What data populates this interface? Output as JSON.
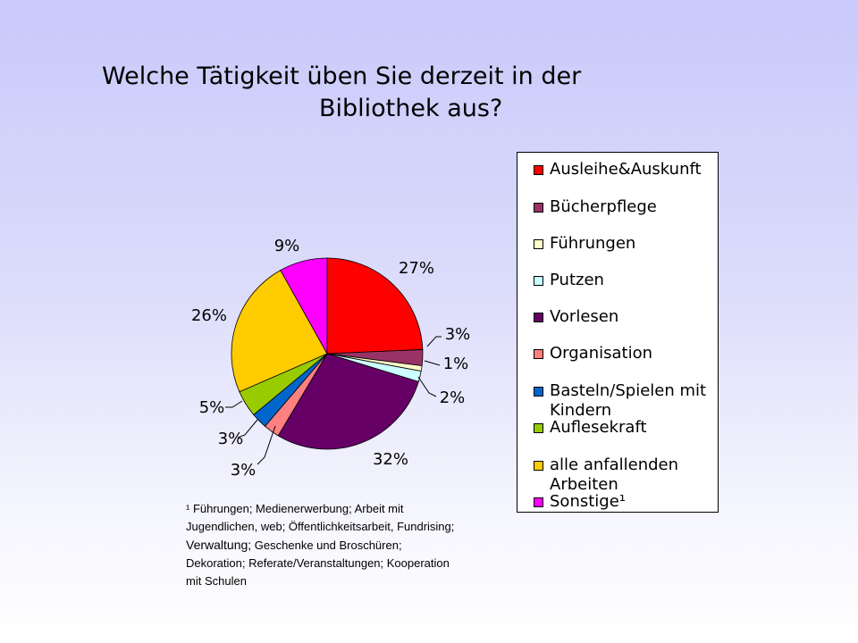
{
  "title_line1": "Welche Tätigkeit üben Sie derzeit in der",
  "title_line2": "Bibliothek aus?",
  "chart_data": {
    "type": "pie",
    "legend_position": "right",
    "slices": [
      {
        "label": "Ausleihe&Auskunft",
        "value": 27,
        "value_label": "27%",
        "color": "#ff0000"
      },
      {
        "label": "Bücherpflege",
        "value": 3,
        "value_label": "3%",
        "color": "#993366"
      },
      {
        "label": "Führungen",
        "value": 1,
        "value_label": "1%",
        "color": "#ffffcc"
      },
      {
        "label": "Putzen",
        "value": 2,
        "value_label": "2%",
        "color": "#ccffff"
      },
      {
        "label": "Vorlesen",
        "value": 32,
        "value_label": "32%",
        "color": "#660066"
      },
      {
        "label": "Organisation",
        "value": 3,
        "value_label": "3%",
        "color": "#ff8080"
      },
      {
        "label": "Basteln/Spielen mit Kindern",
        "value": 3,
        "value_label": "3%",
        "color": "#0066cc"
      },
      {
        "label": " Auflesekraft",
        "value": 5,
        "value_label": "5%",
        "color": "#99cc00"
      },
      {
        "label": "alle anfallenden Arbeiten",
        "value": 26,
        "value_label": "26%",
        "color": "#ffcc00"
      },
      {
        "label": "Sonstige¹",
        "value": 9,
        "value_label": "9%",
        "color": "#ff00ff"
      }
    ]
  },
  "footnote": {
    "line1": "¹ Führungen; Medienerwerbung; Arbeit mit",
    "line2": "Jugendlichen, web; Öffentlichkeitsarbeit, Fundrising;",
    "line3a": "Verwaltung;",
    "line3b": "Geschenke und Broschüren;",
    "line4": "Dekoration; Referate/Veranstaltungen; Kooperation",
    "line5": "mit Schulen"
  }
}
